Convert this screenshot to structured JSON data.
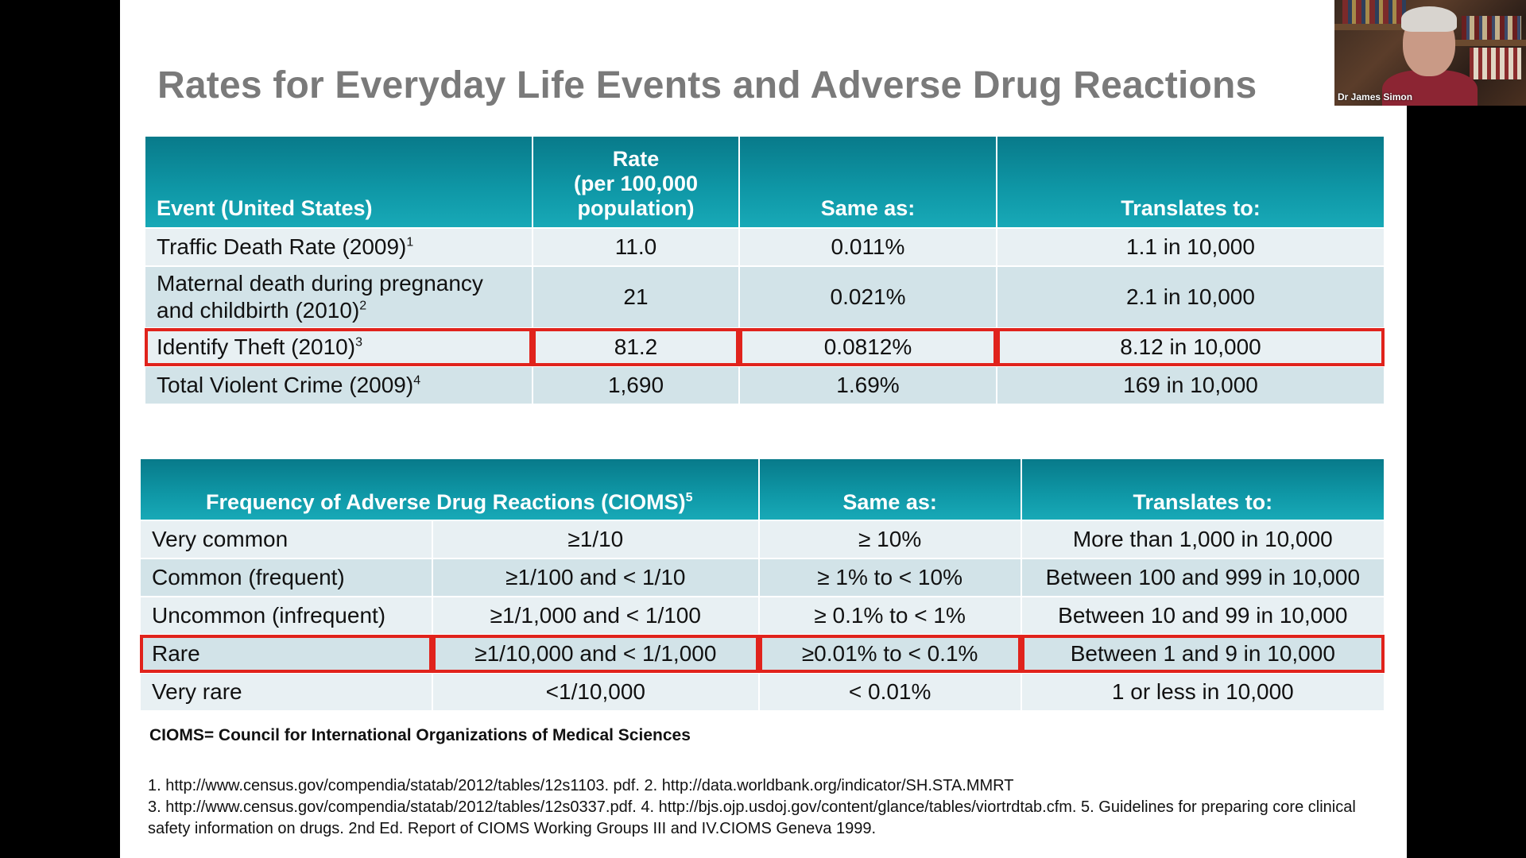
{
  "slide": {
    "title": "Rates for Everyday Life Events and Adverse Drug Reactions"
  },
  "table1": {
    "headers": {
      "event": "Event (United States)",
      "rate_line1": "Rate",
      "rate_line2": "(per 100,000",
      "rate_line3": "population)",
      "same_as": "Same as:",
      "translates": "Translates to:"
    },
    "rows": [
      {
        "event": "Traffic Death Rate (2009)",
        "sup": "1",
        "rate": "11.0",
        "same": "0.011%",
        "translates": "1.1 in 10,000"
      },
      {
        "event_line1": "Maternal death during pregnancy",
        "event_line2": "and childbirth (2010)",
        "sup": "2",
        "rate": "21",
        "same": "0.021%",
        "translates": "2.1 in 10,000"
      },
      {
        "event": "Identify Theft (2010)",
        "sup": "3",
        "rate": "81.2",
        "same": "0.0812%",
        "translates": "8.12 in 10,000"
      },
      {
        "event": "Total Violent Crime (2009)",
        "sup": "4",
        "rate": "1,690",
        "same": "1.69%",
        "translates": "169 in 10,000"
      }
    ]
  },
  "table2": {
    "headers": {
      "frequency": "Frequency of Adverse Drug Reactions (CIOMS)",
      "frequency_sup": "5",
      "same_as": "Same as:",
      "translates": "Translates to:"
    },
    "rows": [
      {
        "category": "Very common",
        "ratio": "≥1/10",
        "same": "≥ 10%",
        "translates": "More than 1,000 in 10,000"
      },
      {
        "category": "Common (frequent)",
        "ratio": "≥1/100 and < 1/10",
        "same": "≥ 1% to < 10%",
        "translates": "Between 100 and 999 in 10,000"
      },
      {
        "category": "Uncommon (infrequent)",
        "ratio": "≥1/1,000 and < 1/100",
        "same": "≥ 0.1% to < 1%",
        "translates": "Between 10 and 99 in 10,000"
      },
      {
        "category": "Rare",
        "ratio": "≥1/10,000 and < 1/1,000",
        "same": "≥0.01% to < 0.1%",
        "translates": "Between 1 and 9 in 10,000"
      },
      {
        "category": "Very rare",
        "ratio": "<1/10,000",
        "same": "< 0.01%",
        "translates": "1 or less in 10,000"
      }
    ]
  },
  "footnotes": {
    "definition": "CIOMS= Council for International Organizations of Medical Sciences",
    "line1": "1. http://www.census.gov/compendia/statab/2012/tables/12s1103. pdf. 2. http://data.worldbank.org/indicator/SH.STA.MMRT",
    "line2": "3. http://www.census.gov/compendia/statab/2012/tables/12s0337.pdf. 4. http://bjs.ojp.usdoj.gov/content/glance/tables/viortrdtab.cfm. 5. Guidelines for preparing core clinical safety information on drugs. 2nd Ed. Report of CIOMS Working Groups III and IV.CIOMS Geneva 1999."
  },
  "webcam": {
    "participant_name": "Dr James Simon"
  },
  "colors": {
    "header_teal": "#0f98a7",
    "highlight_red": "#e0231c",
    "title_gray": "#7a7a7a",
    "band_light": "#e8f0f3",
    "band_dark": "#d2e3e8"
  }
}
